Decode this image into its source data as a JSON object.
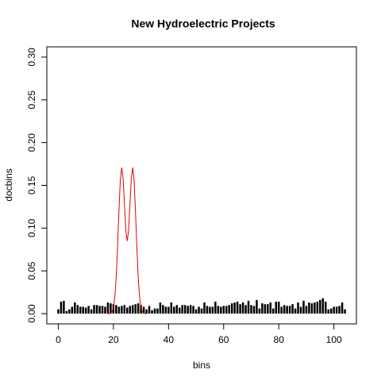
{
  "chart_data": {
    "type": "histogram-lines",
    "title": "New Hydroelectric Projects",
    "x_label": "bins",
    "y_label": "docbins",
    "xlim": [
      -4.16,
      108.16
    ],
    "ylim": [
      -0.012,
      0.312
    ],
    "xticks": [
      0,
      20,
      40,
      60,
      80,
      100
    ],
    "yticks": [
      {
        "value": 0,
        "label": "0.00"
      },
      {
        "value": 0.05,
        "label": "0.05"
      },
      {
        "value": 0.1,
        "label": "0.10"
      },
      {
        "value": 0.15,
        "label": "0.15"
      },
      {
        "value": 0.2,
        "label": "0.20"
      },
      {
        "value": 0.25,
        "label": "0.25"
      },
      {
        "value": 0.3,
        "label": "0.30"
      }
    ],
    "bars": {
      "color": "#000000",
      "values": [
        0.005,
        0.014,
        0.015,
        0.003,
        0.005,
        0.008,
        0.013,
        0.01,
        0.008,
        0.008,
        0.007,
        0.009,
        0.005,
        0.01,
        0.01,
        0.009,
        0.009,
        0.008,
        0.013,
        0.012,
        0.011,
        0.01,
        0.008,
        0.009,
        0.01,
        0.007,
        0.009,
        0.01,
        0.011,
        0.012,
        0.01,
        0.008,
        0.005,
        0.009,
        0.004,
        0.006,
        0.006,
        0.013,
        0.01,
        0.008,
        0.008,
        0.013,
        0.008,
        0.01,
        0.007,
        0.01,
        0.01,
        0.009,
        0.01,
        0.009,
        0.005,
        0.008,
        0.006,
        0.013,
        0.009,
        0.008,
        0.008,
        0.014,
        0.009,
        0.008,
        0.009,
        0.009,
        0.01,
        0.012,
        0.013,
        0.014,
        0.011,
        0.013,
        0.01,
        0.015,
        0.01,
        0.009,
        0.016,
        0.006,
        0.012,
        0.011,
        0.011,
        0.013,
        0.006,
        0.014,
        0.014,
        0.008,
        0.01,
        0.009,
        0.009,
        0.011,
        0.006,
        0.013,
        0.008,
        0.015,
        0.009,
        0.013,
        0.012,
        0.013,
        0.014,
        0.016,
        0.018,
        0.014,
        0.005,
        0.006,
        0.008,
        0.008,
        0.009,
        0.013,
        0.005
      ]
    },
    "curve": {
      "color": "#e00000",
      "x": [
        18,
        18.5,
        19,
        19.5,
        20,
        20.5,
        21,
        21.5,
        22,
        22.5,
        23,
        23.5,
        24,
        24.5,
        25,
        25.5,
        26,
        26.5,
        27,
        27.5,
        28,
        28.5,
        29,
        29.5,
        30,
        30.5,
        31,
        31.5,
        32
      ],
      "values": [
        0,
        0,
        0.001,
        0.002,
        0.008,
        0.019,
        0.042,
        0.078,
        0.12,
        0.156,
        0.171,
        0.158,
        0.128,
        0.097,
        0.085,
        0.097,
        0.128,
        0.158,
        0.171,
        0.156,
        0.12,
        0.078,
        0.042,
        0.019,
        0.008,
        0.002,
        0.001,
        0,
        0
      ]
    }
  }
}
